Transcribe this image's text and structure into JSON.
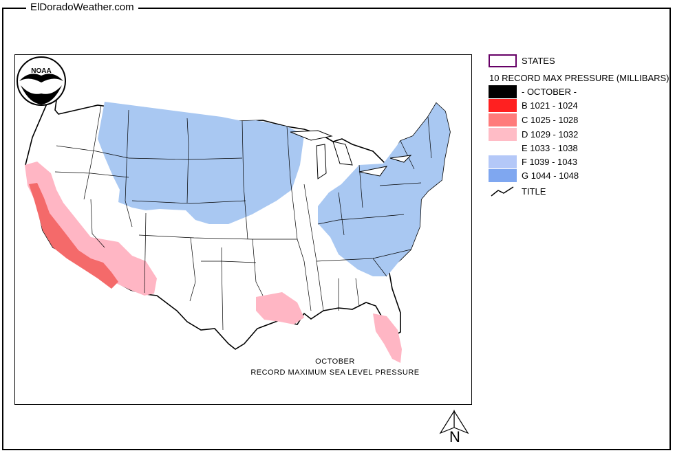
{
  "site": {
    "title": "ElDoradoWeather.com"
  },
  "map": {
    "caption_line1": "OCTOBER",
    "caption_line2": "RECORD MAXIMUM SEA LEVEL PRESSURE",
    "logo_text": "NOAA"
  },
  "legend": {
    "states_label": "STATES",
    "heading": "10 RECORD MAX PRESSURE (MILLIBARS)",
    "items": [
      {
        "label": "- OCTOBER -",
        "color": "#000000"
      },
      {
        "label": "B 1021 - 1024",
        "color": "#ff2020"
      },
      {
        "label": "C 1025 - 1028",
        "color": "#ff7b7b"
      },
      {
        "label": "D 1029 - 1032",
        "color": "#ffbcc6"
      },
      {
        "label": "E 1033 - 1038",
        "color": "#ffffff"
      },
      {
        "label": "F 1039 - 1043",
        "color": "#b4c8f8"
      },
      {
        "label": "G 1044 - 1048",
        "color": "#7fa7f0"
      }
    ],
    "title_label": "TITLE"
  },
  "north_arrow": {
    "label": "N"
  },
  "colors": {
    "blue_region": "#a9c8f2",
    "pink_region": "#ffb6c4",
    "red_region": "#f46a6a",
    "states_border": "#660066"
  }
}
